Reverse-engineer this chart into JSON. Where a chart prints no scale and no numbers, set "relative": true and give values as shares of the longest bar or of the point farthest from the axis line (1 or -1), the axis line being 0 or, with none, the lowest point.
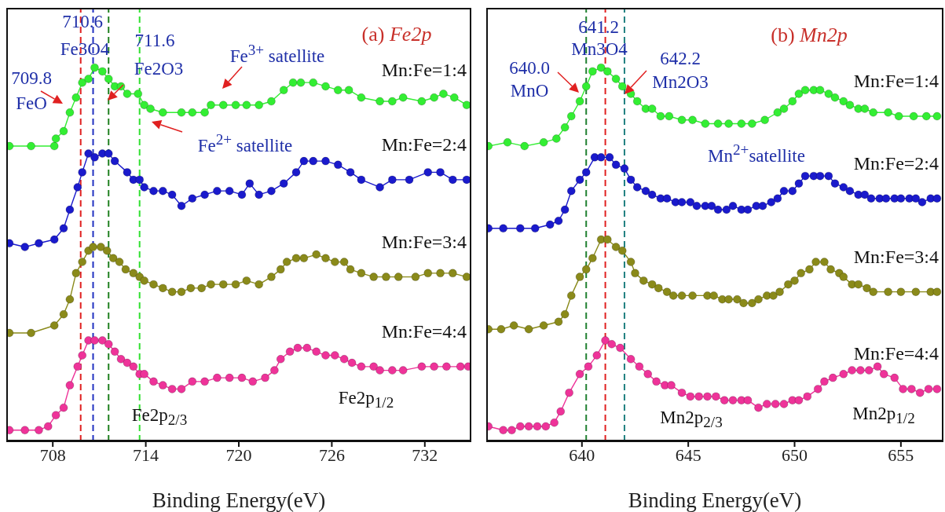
{
  "chart_data": [
    {
      "type": "line",
      "title": "(a) Fe2p",
      "xlabel": "Binding Energy(eV)",
      "relative": true,
      "xlim": [
        705,
        735
      ],
      "xticks": [
        708,
        714,
        720,
        726,
        732
      ],
      "tick_labels": "x",
      "marker": "circle",
      "series": [
        {
          "name": "Mn:Fe=1:4",
          "color": "#33ee33",
          "x": [
            705.2,
            706.6,
            708.1,
            708.2,
            708.7,
            709.1,
            709.5,
            709.9,
            710.3,
            710.7,
            711.2,
            711.6,
            712.0,
            712.4,
            712.8,
            713.5,
            713.9,
            714.3,
            715.1,
            716.3,
            717.0,
            717.8,
            718.2,
            719.0,
            719.8,
            720.5,
            721.3,
            722.1,
            722.9,
            723.5,
            724.0,
            724.8,
            725.6,
            726.4,
            727.1,
            727.9,
            729.1,
            729.9,
            730.6,
            731.8,
            732.6,
            733.2,
            733.9,
            734.7
          ],
          "values": [
            0.79,
            0.79,
            0.79,
            0.81,
            0.83,
            0.88,
            0.92,
            0.96,
            0.97,
            1.0,
            0.99,
            0.97,
            0.95,
            0.95,
            0.93,
            0.93,
            0.9,
            0.89,
            0.88,
            0.88,
            0.88,
            0.88,
            0.9,
            0.9,
            0.9,
            0.9,
            0.9,
            0.91,
            0.94,
            0.96,
            0.96,
            0.96,
            0.95,
            0.94,
            0.94,
            0.92,
            0.91,
            0.91,
            0.92,
            0.91,
            0.92,
            0.93,
            0.92,
            0.9
          ]
        },
        {
          "name": "Mn:Fe=2:4",
          "color": "#1a1acc",
          "x": [
            705.2,
            706.2,
            707.1,
            708.1,
            708.7,
            709.1,
            709.6,
            709.9,
            710.3,
            710.7,
            711.2,
            711.6,
            712.0,
            712.8,
            713.2,
            713.6,
            713.9,
            714.5,
            715.1,
            715.7,
            716.3,
            717.0,
            717.8,
            718.6,
            719.4,
            720.2,
            720.7,
            721.3,
            722.1,
            722.9,
            723.7,
            724.2,
            724.8,
            725.6,
            726.4,
            727.2,
            727.9,
            729.1,
            729.9,
            731.0,
            732.2,
            733.0,
            733.8,
            734.7
          ],
          "values": [
            0.53,
            0.52,
            0.53,
            0.54,
            0.57,
            0.62,
            0.68,
            0.72,
            0.77,
            0.76,
            0.77,
            0.77,
            0.75,
            0.72,
            0.7,
            0.7,
            0.68,
            0.67,
            0.67,
            0.66,
            0.63,
            0.65,
            0.66,
            0.67,
            0.67,
            0.66,
            0.69,
            0.66,
            0.67,
            0.69,
            0.72,
            0.75,
            0.75,
            0.75,
            0.74,
            0.72,
            0.7,
            0.68,
            0.7,
            0.7,
            0.72,
            0.72,
            0.7,
            0.7
          ]
        },
        {
          "name": "Mn:Fe=3:4",
          "color": "#8a8a1a",
          "x": [
            705.2,
            706.6,
            708.1,
            708.7,
            709.1,
            709.5,
            709.9,
            710.3,
            710.6,
            711.1,
            711.5,
            711.9,
            712.3,
            712.7,
            713.2,
            713.6,
            713.9,
            714.5,
            715.1,
            715.7,
            716.3,
            716.9,
            717.6,
            718.2,
            719.0,
            719.8,
            720.5,
            721.3,
            722.1,
            722.7,
            723.1,
            723.7,
            724.2,
            725.0,
            725.6,
            726.2,
            726.8,
            727.2,
            727.9,
            728.7,
            729.5,
            730.3,
            731.4,
            732.2,
            733.0,
            733.8,
            734.7
          ],
          "values": [
            0.29,
            0.29,
            0.31,
            0.34,
            0.38,
            0.45,
            0.48,
            0.51,
            0.52,
            0.52,
            0.51,
            0.49,
            0.48,
            0.46,
            0.45,
            0.44,
            0.43,
            0.42,
            0.41,
            0.4,
            0.4,
            0.41,
            0.41,
            0.42,
            0.42,
            0.42,
            0.43,
            0.42,
            0.44,
            0.46,
            0.48,
            0.49,
            0.49,
            0.5,
            0.49,
            0.48,
            0.48,
            0.46,
            0.45,
            0.44,
            0.44,
            0.44,
            0.44,
            0.45,
            0.45,
            0.45,
            0.44
          ]
        },
        {
          "name": "Mn:Fe=4:4",
          "color": "#ee3399",
          "x": [
            705.2,
            706.2,
            707.1,
            707.7,
            708.2,
            708.7,
            709.1,
            709.6,
            709.9,
            710.3,
            710.7,
            711.2,
            711.6,
            712.0,
            712.4,
            712.8,
            713.2,
            713.6,
            713.9,
            714.5,
            715.1,
            715.7,
            716.3,
            717.0,
            717.8,
            718.6,
            719.4,
            720.2,
            720.9,
            721.7,
            722.3,
            722.7,
            723.3,
            723.8,
            724.4,
            725.0,
            725.6,
            726.2,
            726.8,
            727.3,
            727.9,
            728.7,
            729.1,
            729.9,
            730.6,
            731.8,
            732.6,
            733.4,
            734.3,
            734.8
          ],
          "values": [
            0.03,
            0.03,
            0.03,
            0.04,
            0.07,
            0.09,
            0.15,
            0.2,
            0.23,
            0.27,
            0.27,
            0.27,
            0.26,
            0.24,
            0.22,
            0.21,
            0.2,
            0.18,
            0.18,
            0.16,
            0.15,
            0.14,
            0.14,
            0.16,
            0.16,
            0.17,
            0.17,
            0.17,
            0.16,
            0.17,
            0.19,
            0.22,
            0.24,
            0.25,
            0.25,
            0.24,
            0.23,
            0.23,
            0.22,
            0.21,
            0.2,
            0.2,
            0.19,
            0.19,
            0.19,
            0.2,
            0.2,
            0.2,
            0.2,
            0.2
          ]
        }
      ],
      "ref_lines": [
        {
          "axis": "x",
          "value": 709.8,
          "color": "#e02020",
          "line_style": "dashed"
        },
        {
          "axis": "x",
          "value": 710.6,
          "color": "#2030c0",
          "line_style": "dashed"
        },
        {
          "axis": "x",
          "value": 711.6,
          "color": "#208020",
          "line_style": "dashed"
        },
        {
          "axis": "x",
          "value": 713.6,
          "color": "#30e030",
          "line_style": "dashed"
        }
      ],
      "annotations": [
        "709.8",
        "FeO",
        "710.6",
        "Fe3O4",
        "711.6",
        "Fe2O3",
        "Fe$^{3+}$ satellite",
        "Fe$^{2+}$ satellite",
        "Fe2p$_{2/3}$",
        "Fe2p$_{1/2}$"
      ]
    },
    {
      "type": "line",
      "title": "(b) Mn2p",
      "xlabel": "Binding Energy(eV)",
      "relative": true,
      "xlim": [
        635.5,
        657
      ],
      "xticks": [
        640,
        645,
        650,
        655
      ],
      "tick_labels": "x",
      "marker": "circle",
      "series": [
        {
          "name": "Mn:Fe=1:4",
          "color": "#33ee33",
          "x": [
            635.6,
            636.5,
            637.3,
            638.2,
            638.8,
            639.2,
            639.5,
            639.9,
            640.2,
            640.5,
            640.9,
            641.2,
            641.6,
            641.9,
            642.3,
            642.6,
            643.0,
            643.3,
            643.7,
            644.1,
            644.7,
            645.2,
            645.8,
            646.4,
            646.9,
            647.5,
            648.0,
            648.6,
            649.2,
            649.5,
            649.9,
            650.2,
            650.5,
            650.9,
            651.2,
            651.6,
            651.9,
            652.3,
            652.6,
            653.0,
            653.3,
            653.7,
            654.4,
            654.9,
            655.6,
            656.2,
            656.7
          ],
          "values": [
            0.79,
            0.8,
            0.79,
            0.8,
            0.81,
            0.84,
            0.87,
            0.91,
            0.95,
            0.99,
            1.0,
            0.99,
            0.97,
            0.95,
            0.93,
            0.91,
            0.89,
            0.89,
            0.87,
            0.87,
            0.86,
            0.86,
            0.85,
            0.85,
            0.85,
            0.85,
            0.85,
            0.86,
            0.88,
            0.89,
            0.91,
            0.93,
            0.94,
            0.94,
            0.94,
            0.93,
            0.92,
            0.91,
            0.9,
            0.89,
            0.89,
            0.88,
            0.88,
            0.87,
            0.87,
            0.87,
            0.87
          ]
        },
        {
          "name": "Mn:Fe=2:4",
          "color": "#1a1acc",
          "x": [
            635.6,
            636.3,
            637.1,
            637.8,
            638.5,
            638.9,
            639.2,
            639.5,
            639.9,
            640.2,
            640.6,
            640.9,
            641.3,
            641.6,
            642.0,
            642.3,
            642.6,
            643.0,
            643.3,
            643.7,
            644.0,
            644.4,
            644.7,
            645.1,
            645.4,
            645.8,
            646.1,
            646.4,
            646.8,
            647.1,
            647.5,
            647.8,
            648.2,
            648.5,
            648.9,
            649.2,
            649.5,
            649.9,
            650.2,
            650.5,
            650.9,
            651.2,
            651.6,
            651.9,
            652.3,
            652.6,
            653.0,
            653.3,
            653.6,
            654.0,
            654.3,
            654.7,
            655.0,
            655.4,
            655.7,
            656.0,
            656.4,
            656.7
          ],
          "values": [
            0.57,
            0.57,
            0.57,
            0.57,
            0.58,
            0.59,
            0.62,
            0.67,
            0.7,
            0.72,
            0.76,
            0.76,
            0.76,
            0.74,
            0.73,
            0.7,
            0.68,
            0.67,
            0.66,
            0.65,
            0.65,
            0.64,
            0.64,
            0.64,
            0.63,
            0.63,
            0.63,
            0.62,
            0.62,
            0.63,
            0.62,
            0.62,
            0.63,
            0.63,
            0.64,
            0.65,
            0.67,
            0.67,
            0.69,
            0.71,
            0.71,
            0.71,
            0.71,
            0.69,
            0.68,
            0.67,
            0.66,
            0.66,
            0.65,
            0.65,
            0.65,
            0.65,
            0.65,
            0.65,
            0.65,
            0.64,
            0.65,
            0.65
          ]
        },
        {
          "name": "Mn:Fe=3:4",
          "color": "#8a8a1a",
          "x": [
            635.6,
            636.2,
            636.8,
            637.5,
            638.2,
            638.9,
            639.2,
            639.5,
            639.9,
            640.2,
            640.5,
            640.9,
            641.2,
            641.6,
            641.9,
            642.3,
            642.5,
            642.9,
            643.3,
            643.6,
            644.0,
            644.3,
            644.7,
            645.2,
            645.9,
            646.2,
            646.6,
            646.9,
            647.3,
            647.6,
            648.0,
            648.3,
            648.7,
            649.0,
            649.3,
            649.7,
            650.0,
            650.3,
            650.7,
            651.0,
            651.4,
            651.7,
            652.1,
            652.3,
            652.7,
            653.0,
            653.4,
            653.7,
            654.4,
            655.0,
            655.7,
            656.4,
            656.7
          ],
          "values": [
            0.3,
            0.3,
            0.31,
            0.3,
            0.31,
            0.32,
            0.34,
            0.39,
            0.44,
            0.46,
            0.49,
            0.54,
            0.54,
            0.52,
            0.51,
            0.48,
            0.45,
            0.43,
            0.42,
            0.41,
            0.4,
            0.39,
            0.39,
            0.39,
            0.39,
            0.39,
            0.38,
            0.38,
            0.38,
            0.37,
            0.37,
            0.38,
            0.39,
            0.39,
            0.4,
            0.42,
            0.43,
            0.45,
            0.46,
            0.48,
            0.48,
            0.46,
            0.45,
            0.44,
            0.42,
            0.42,
            0.41,
            0.4,
            0.4,
            0.4,
            0.4,
            0.4,
            0.4
          ]
        },
        {
          "name": "Mn:Fe=4:4",
          "color": "#ee3399",
          "x": [
            635.6,
            636.3,
            636.7,
            637.1,
            637.5,
            637.9,
            638.3,
            638.7,
            639.0,
            639.4,
            639.9,
            640.3,
            640.7,
            641.1,
            641.4,
            641.8,
            642.3,
            642.7,
            643.1,
            643.5,
            643.9,
            644.2,
            644.7,
            645.1,
            645.5,
            645.9,
            646.3,
            646.7,
            647.1,
            647.5,
            647.8,
            648.3,
            648.7,
            649.1,
            649.5,
            649.9,
            650.2,
            650.6,
            651.1,
            651.4,
            651.8,
            652.3,
            652.7,
            653.1,
            653.5,
            653.9,
            654.2,
            654.7,
            655.1,
            655.5,
            655.9,
            656.3,
            656.7
          ],
          "values": [
            0.04,
            0.03,
            0.03,
            0.04,
            0.04,
            0.04,
            0.04,
            0.05,
            0.08,
            0.13,
            0.18,
            0.2,
            0.23,
            0.27,
            0.26,
            0.25,
            0.22,
            0.2,
            0.18,
            0.16,
            0.15,
            0.15,
            0.13,
            0.12,
            0.12,
            0.12,
            0.12,
            0.11,
            0.11,
            0.11,
            0.11,
            0.09,
            0.1,
            0.1,
            0.1,
            0.11,
            0.11,
            0.12,
            0.14,
            0.16,
            0.17,
            0.18,
            0.19,
            0.19,
            0.19,
            0.2,
            0.18,
            0.17,
            0.14,
            0.14,
            0.13,
            0.14,
            0.14
          ]
        }
      ],
      "ref_lines": [
        {
          "axis": "x",
          "value": 640.2,
          "color": "#208030",
          "line_style": "dashed"
        },
        {
          "axis": "x",
          "value": 641.1,
          "color": "#e02020",
          "line_style": "dashed"
        },
        {
          "axis": "x",
          "value": 642.0,
          "color": "#208080",
          "line_style": "dashed"
        }
      ],
      "annotations": [
        "640.0",
        "MnO",
        "641.2",
        "Mn3O4",
        "642.2",
        "Mn2O3",
        "Mn$^{2+}$satellite",
        "Mn2p$_{2/3}$",
        "Mn2p$_{1/2}$"
      ]
    }
  ]
}
